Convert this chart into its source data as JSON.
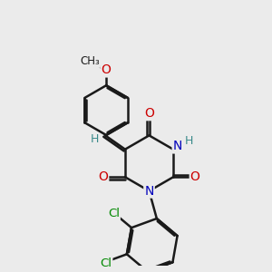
{
  "bg_color": "#ebebeb",
  "bond_color": "#1a1a1a",
  "bond_width": 1.8,
  "atom_colors": {
    "O": "#cc0000",
    "N": "#0000bb",
    "Cl": "#008800",
    "H": "#3a8a8a",
    "C": "#1a1a1a"
  },
  "font_size": 10,
  "figsize": [
    3.0,
    3.0
  ],
  "dpi": 100
}
